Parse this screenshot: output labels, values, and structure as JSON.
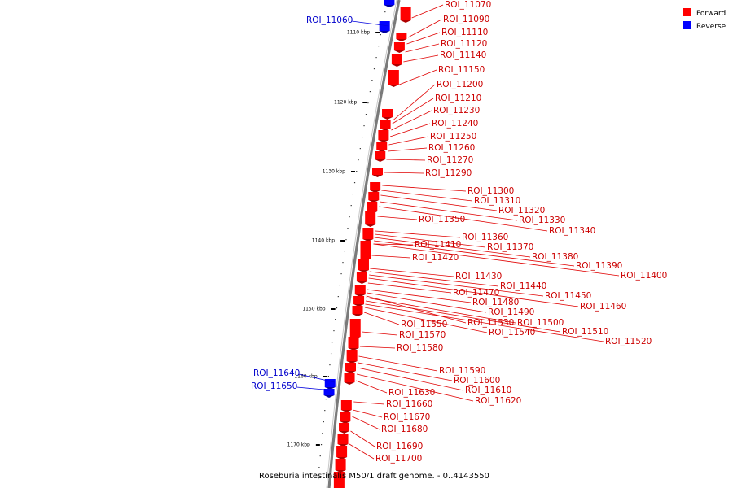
{
  "caption": "Roseburia intestinalis M50/1 draft genome. - 0..4143550",
  "legend": [
    {
      "label": "Forward",
      "color": "#ff0000"
    },
    {
      "label": "Reverse",
      "color": "#0000ff"
    }
  ],
  "colors": {
    "forward": "#ff0000",
    "reverse": "#0000ff",
    "backbone": "#808080",
    "forward_label": "#cc0000",
    "reverse_label": "#0000cc"
  },
  "kbp_ticks": [
    "1110 kbp",
    "1120 kbp",
    "1130 kbp",
    "1140 kbp",
    "1150 kbp",
    "1160 kbp",
    "1170 kbp"
  ],
  "forward_rois": [
    "ROI_11070",
    "ROI_11090",
    "ROI_11110",
    "ROI_11120",
    "ROI_11140",
    "ROI_11150",
    "ROI_11200",
    "ROI_11210",
    "ROI_11230",
    "ROI_11240",
    "ROI_11250",
    "ROI_11260",
    "ROI_11270",
    "ROI_11290",
    "ROI_11300",
    "ROI_11310",
    "ROI_11320",
    "ROI_11330",
    "ROI_11340",
    "ROI_11350",
    "ROI_11360",
    "ROI_11370",
    "ROI_11380",
    "ROI_11390",
    "ROI_11400",
    "ROI_11410",
    "ROI_11420",
    "ROI_11430",
    "ROI_11440",
    "ROI_11450",
    "ROI_11460",
    "ROI_11470",
    "ROI_11480",
    "ROI_11490",
    "ROI_11500",
    "ROI_11510",
    "ROI_11520",
    "ROI_11530",
    "ROI_11540",
    "ROI_11550",
    "ROI_11570",
    "ROI_11580",
    "ROI_11590",
    "ROI_11600",
    "ROI_11610",
    "ROI_11620",
    "ROI_11630",
    "ROI_11660",
    "ROI_11670",
    "ROI_11680",
    "ROI_11690",
    "ROI_11700"
  ],
  "reverse_rois": [
    "ROI_11060",
    "ROI_11640",
    "ROI_11650"
  ]
}
